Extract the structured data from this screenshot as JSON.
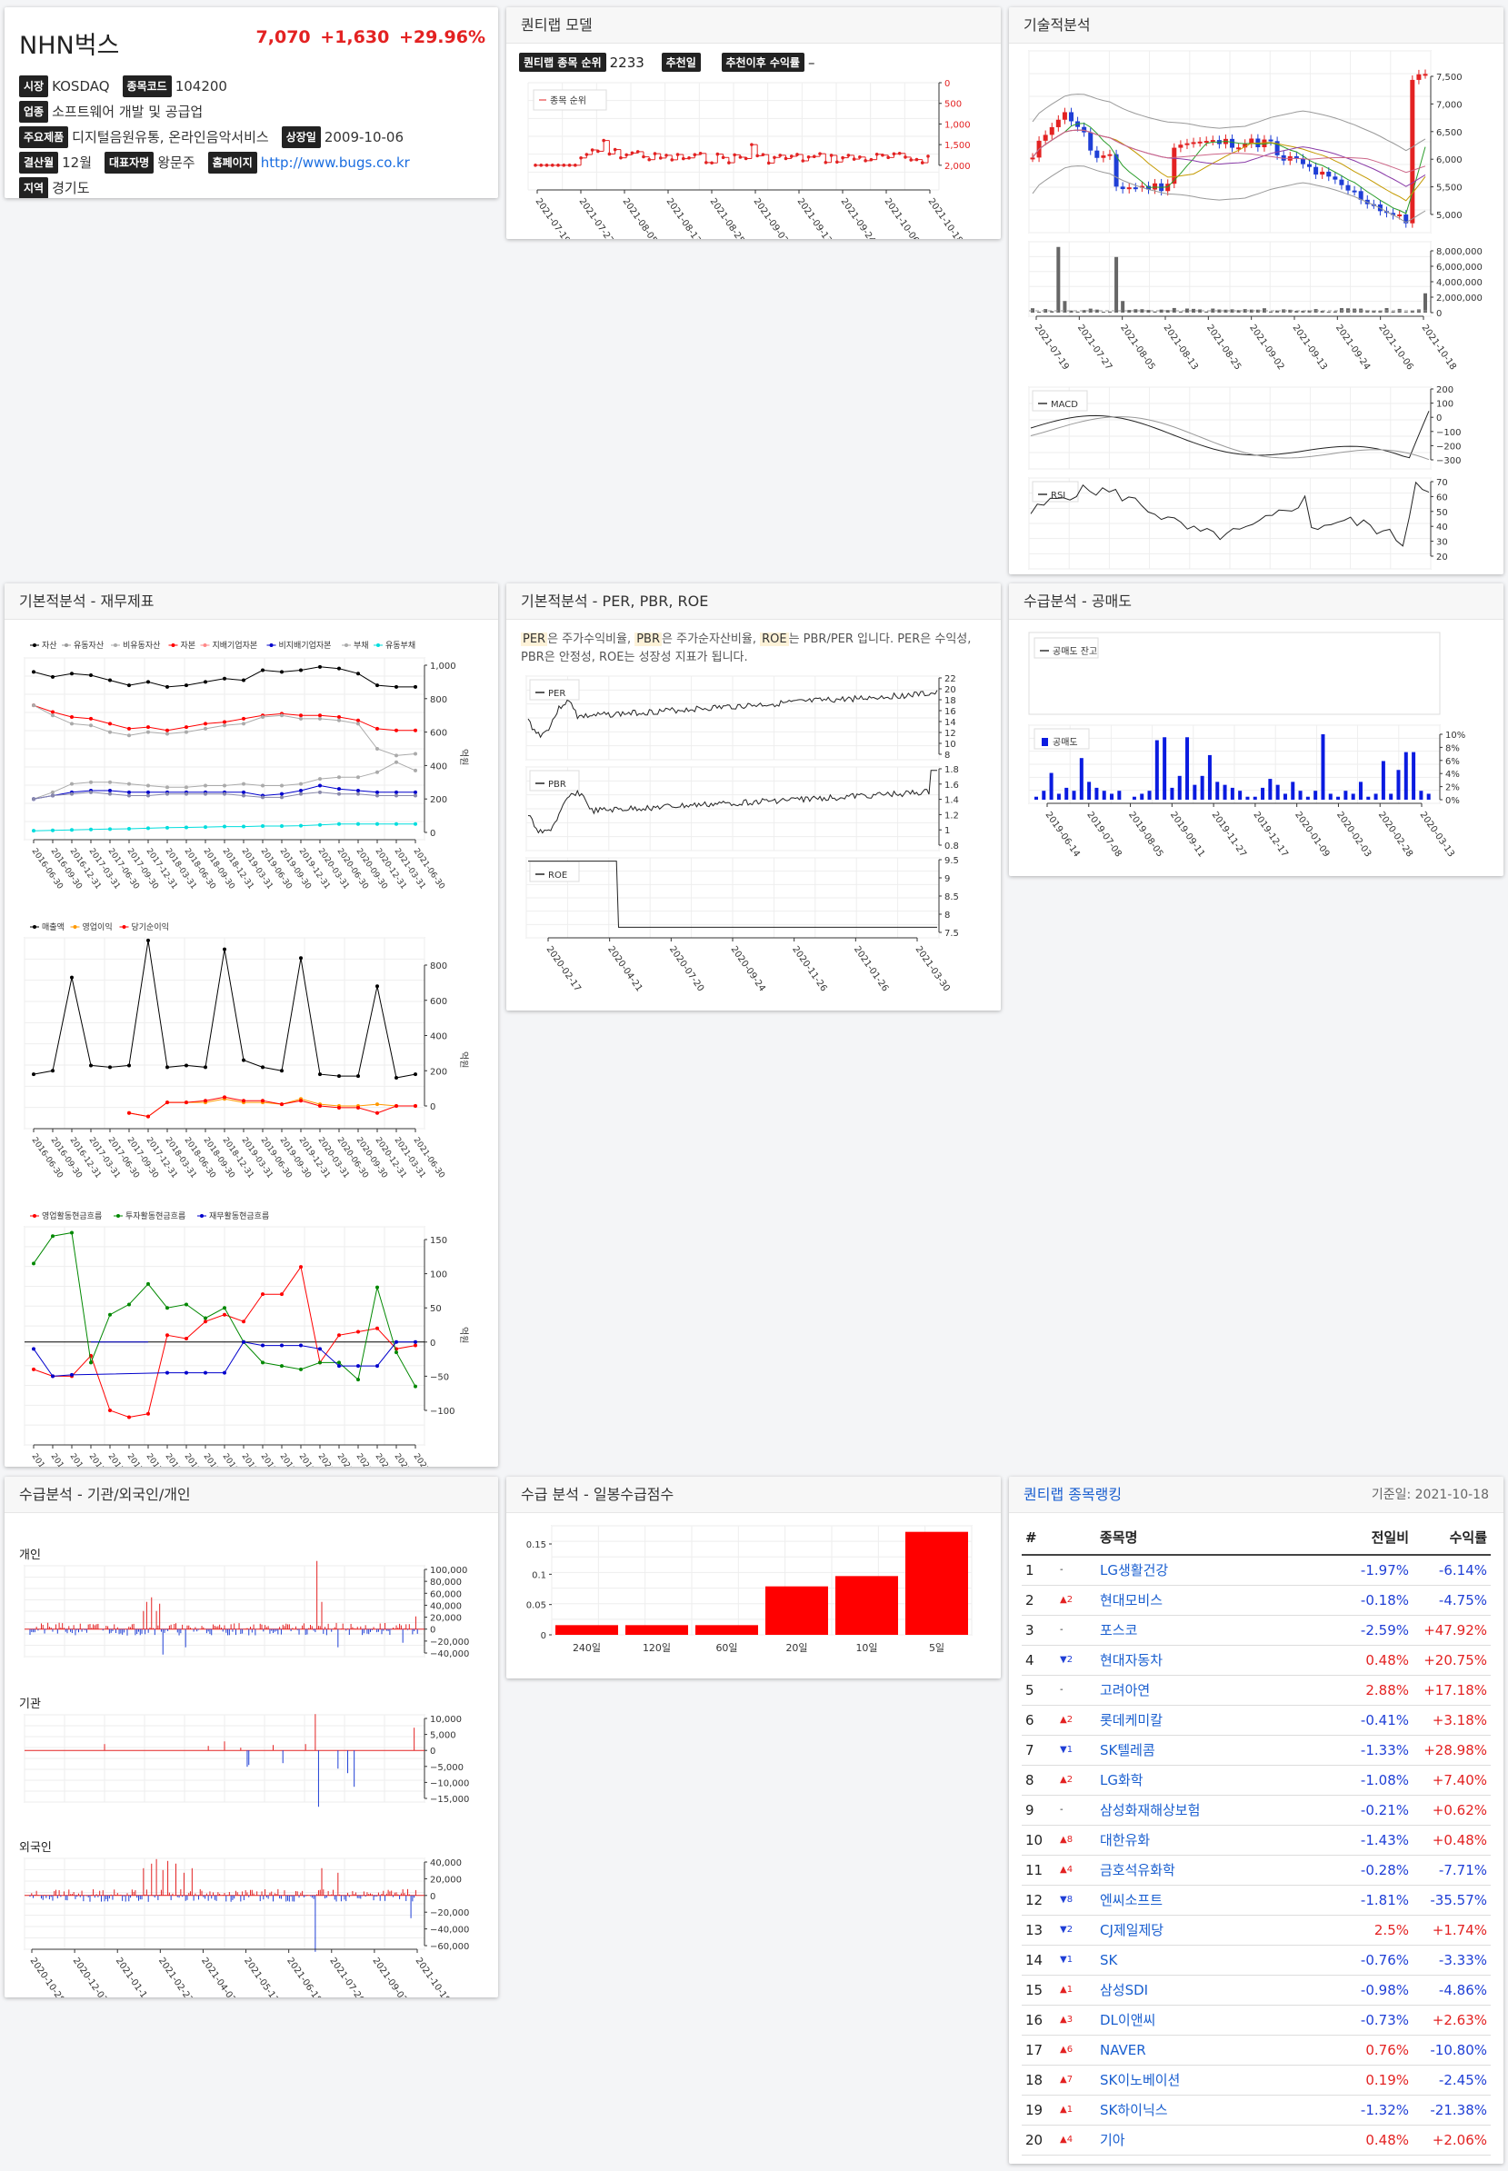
{
  "stock": {
    "name": "NHN벅스",
    "price": "7,070",
    "change": "+1,630",
    "change_pct": "+29.96%",
    "fields": [
      [
        {
          "label": "시장",
          "value": "KOSDAQ"
        },
        {
          "label": "종목코드",
          "value": "104200"
        }
      ],
      [
        {
          "label": "업종",
          "value": "소프트웨어 개발 및 공급업"
        }
      ],
      [
        {
          "label": "주요제품",
          "value": "디지털음원유통, 온라인음악서비스"
        },
        {
          "label": "상장일",
          "value": "2009-10-06"
        }
      ],
      [
        {
          "label": "결산월",
          "value": "12월"
        },
        {
          "label": "대표자명",
          "value": "왕문주"
        },
        {
          "label": "홈페이지",
          "value": "http://www.bugs.co.kr",
          "link": true
        }
      ],
      [
        {
          "label": "지역",
          "value": "경기도"
        }
      ]
    ]
  },
  "model": {
    "title": "퀀티랩 모델",
    "rank_label": "퀀티랩 종목 순위",
    "rank_value": "2233",
    "rec_label": "추천일",
    "rec_value": "",
    "ret_label": "추천이후 수익률",
    "ret_value": "–",
    "legend": "종목 순위",
    "yticks": [
      "0",
      "500",
      "1,000",
      "1,500",
      "2,000"
    ],
    "xticks": [
      "2021-07-19",
      "2021-07-27",
      "2021-08-05",
      "2021-08-13",
      "2021-08-25",
      "2021-09-02",
      "2021-09-13",
      "2021-09-24",
      "2021-10-06",
      "2021-10-18"
    ]
  },
  "tech": {
    "title": "기술적분석",
    "price_ticks": [
      "7,500",
      "7,000",
      "6,500",
      "6,000",
      "5,500",
      "5,000"
    ],
    "vol_ticks": [
      "8,000,000",
      "6,000,000",
      "4,000,000",
      "2,000,000",
      "0"
    ],
    "xticks": [
      "2021-07-19",
      "2021-07-27",
      "2021-08-05",
      "2021-08-13",
      "2021-08-25",
      "2021-09-02",
      "2021-09-13",
      "2021-09-24",
      "2021-10-06",
      "2021-10-18"
    ],
    "macd_label": "MACD",
    "macd_ticks": [
      "200",
      "100",
      "0",
      "−100",
      "−200",
      "−300"
    ],
    "rsi_label": "RSI",
    "rsi_ticks": [
      "70",
      "60",
      "50",
      "40",
      "30",
      "20"
    ]
  },
  "fin": {
    "title": "기본적분석 - 재무제표",
    "legend1": [
      "자산",
      "유동자산",
      "비유동자산",
      "자본",
      "지배기업자본",
      "비지배기업자본",
      "부채",
      "유동부채"
    ],
    "legend1_colors": [
      "#000",
      "#999",
      "#aaa",
      "#f00",
      "#f88",
      "#00c",
      "#aaa",
      "#0dd"
    ],
    "legend2": [
      "매출액",
      "영업이익",
      "당기순이익"
    ],
    "legend2_colors": [
      "#000",
      "#f90",
      "#f00"
    ],
    "legend3": [
      "영업활동현금흐름",
      "투자활동현금흐름",
      "재무활동현금흐름"
    ],
    "legend3_colors": [
      "#f00",
      "#080",
      "#00c"
    ],
    "unit": "억원",
    "ticks1": [
      "1,000",
      "800",
      "600",
      "400",
      "200",
      "0"
    ],
    "ticks2": [
      "800",
      "600",
      "400",
      "200",
      "0"
    ],
    "ticks3": [
      "150",
      "100",
      "50",
      "0",
      "−50",
      "−100"
    ],
    "dates": [
      "2016-06-30",
      "2016-09-30",
      "2016-12-31",
      "2017-03-31",
      "2017-06-30",
      "2017-09-30",
      "2017-12-31",
      "2018-03-31",
      "2018-06-30",
      "2018-09-30",
      "2018-12-31",
      "2019-03-31",
      "2019-06-30",
      "2019-09-30",
      "2019-12-31",
      "2020-03-31",
      "2020-06-30",
      "2020-09-30",
      "2020-12-31",
      "2021-03-31",
      "2021-06-30"
    ]
  },
  "ratio": {
    "title": "기본적분석 - PER, PBR, ROE",
    "desc": [
      {
        "hl": "PER"
      },
      {
        "t": "은 주가수익비율, "
      },
      {
        "hl": "PBR"
      },
      {
        "t": "은 주가순자산비율, "
      },
      {
        "hl": "ROE"
      },
      {
        "t": "는 PBR/PER 입니다. PER은 수익성, PBR은 안정성, ROE는 성장성 지표가 됩니다."
      }
    ],
    "per_label": "PER",
    "per_ticks": [
      "22",
      "20",
      "18",
      "16",
      "14",
      "12",
      "10",
      "8"
    ],
    "pbr_label": "PBR",
    "pbr_ticks": [
      "1.8",
      "1.6",
      "1.4",
      "1.2",
      "1",
      "0.8"
    ],
    "roe_label": "ROE",
    "roe_ticks": [
      "9.5",
      "9",
      "8.5",
      "8",
      "7.5"
    ],
    "xticks": [
      "2020-02-17",
      "2020-04-21",
      "2020-07-20",
      "2020-09-24",
      "2020-11-26",
      "2021-01-26",
      "2021-03-30"
    ]
  },
  "short": {
    "title": "수급분석 - 공매도",
    "legend1": "공매도 잔고",
    "legend2": "공매도",
    "ticks": [
      "10%",
      "8%",
      "6%",
      "4%",
      "2%",
      "0%"
    ],
    "xticks": [
      "2019-06-14",
      "2019-07-08",
      "2019-08-05",
      "2019-09-11",
      "2019-11-27",
      "2019-12-17",
      "2020-01-09",
      "2020-02-03",
      "2020-02-28",
      "2020-03-13"
    ],
    "values": [
      1,
      3,
      9,
      2,
      4,
      3,
      14,
      6,
      4,
      3,
      2,
      3,
      0,
      1,
      2,
      3,
      20,
      21,
      4,
      8,
      21,
      5,
      8,
      15,
      6,
      5,
      4,
      3,
      1,
      1,
      4,
      7,
      5,
      2,
      6,
      3,
      1,
      3,
      22,
      2,
      1,
      3,
      2,
      6,
      1,
      2,
      13,
      2,
      10,
      16,
      16,
      3,
      2
    ]
  },
  "flow": {
    "title": "수급분석 - 기관/외국인/개인",
    "ind": "개인",
    "inst": "기관",
    "frgn": "외국인",
    "ind_ticks": [
      "100,000",
      "80,000",
      "60,000",
      "40,000",
      "20,000",
      "0",
      "−20,000",
      "−40,000"
    ],
    "inst_ticks": [
      "10,000",
      "5,000",
      "0",
      "−5,000",
      "−10,000",
      "−15,000"
    ],
    "frgn_ticks": [
      "40,000",
      "20,000",
      "0",
      "−20,000",
      "−40,000",
      "−60,000"
    ],
    "xticks": [
      "2020-10-28",
      "2020-12-03",
      "2021-01-14",
      "2021-02-23",
      "2021-04-02",
      "2021-05-11",
      "2021-06-18",
      "2021-07-26",
      "2021-09-02",
      "2021-10-18"
    ]
  },
  "score": {
    "title": "수급 분석 - 일봉수급점수",
    "categories": [
      "240일",
      "120일",
      "60일",
      "20일",
      "10일",
      "5일"
    ],
    "values": [
      0.016,
      0.016,
      0.016,
      0.08,
      0.097,
      0.17
    ],
    "yticks": [
      "0.15",
      "0.1",
      "0.05",
      "0"
    ],
    "ylim": [
      0,
      0.18
    ]
  },
  "rank": {
    "title": "퀀티랩 종목랭킹",
    "base_date": "기준일: 2021-10-18",
    "headers": [
      "#",
      "",
      "종목명",
      "전일비",
      "수익률"
    ],
    "rows": [
      {
        "n": "1",
        "mv": "-",
        "dir": "",
        "name": "LG생활건강",
        "chg": "-1.97%",
        "ret": "-6.14%"
      },
      {
        "n": "2",
        "mv": "▲2",
        "dir": "up",
        "name": "현대모비스",
        "chg": "-0.18%",
        "ret": "-4.75%"
      },
      {
        "n": "3",
        "mv": "-",
        "dir": "",
        "name": "포스코",
        "chg": "-2.59%",
        "ret": "+47.92%"
      },
      {
        "n": "4",
        "mv": "▼2",
        "dir": "dn",
        "name": "현대자동차",
        "chg": "0.48%",
        "ret": "+20.75%"
      },
      {
        "n": "5",
        "mv": "-",
        "dir": "",
        "name": "고려아연",
        "chg": "2.88%",
        "ret": "+17.18%"
      },
      {
        "n": "6",
        "mv": "▲2",
        "dir": "up",
        "name": "롯데케미칼",
        "chg": "-0.41%",
        "ret": "+3.18%"
      },
      {
        "n": "7",
        "mv": "▼1",
        "dir": "dn",
        "name": "SK텔레콤",
        "chg": "-1.33%",
        "ret": "+28.98%"
      },
      {
        "n": "8",
        "mv": "▲2",
        "dir": "up",
        "name": "LG화학",
        "chg": "-1.08%",
        "ret": "+7.40%"
      },
      {
        "n": "9",
        "mv": "-",
        "dir": "",
        "name": "삼성화재해상보험",
        "chg": "-0.21%",
        "ret": "+0.62%"
      },
      {
        "n": "10",
        "mv": "▲8",
        "dir": "up",
        "name": "대한유화",
        "chg": "-1.43%",
        "ret": "+0.48%"
      },
      {
        "n": "11",
        "mv": "▲4",
        "dir": "up",
        "name": "금호석유화학",
        "chg": "-0.28%",
        "ret": "-7.71%"
      },
      {
        "n": "12",
        "mv": "▼8",
        "dir": "dn",
        "name": "엔씨소프트",
        "chg": "-1.81%",
        "ret": "-35.57%"
      },
      {
        "n": "13",
        "mv": "▼2",
        "dir": "dn",
        "name": "CJ제일제당",
        "chg": "2.5%",
        "ret": "+1.74%"
      },
      {
        "n": "14",
        "mv": "▼1",
        "dir": "dn",
        "name": "SK",
        "chg": "-0.76%",
        "ret": "-3.33%"
      },
      {
        "n": "15",
        "mv": "▲1",
        "dir": "up",
        "name": "삼성SDI",
        "chg": "-0.98%",
        "ret": "-4.86%"
      },
      {
        "n": "16",
        "mv": "▲3",
        "dir": "up",
        "name": "DL이앤씨",
        "chg": "-0.73%",
        "ret": "+2.63%"
      },
      {
        "n": "17",
        "mv": "▲6",
        "dir": "up",
        "name": "NAVER",
        "chg": "0.76%",
        "ret": "-10.80%"
      },
      {
        "n": "18",
        "mv": "▲7",
        "dir": "up",
        "name": "SK이노베이션",
        "chg": "0.19%",
        "ret": "-2.45%"
      },
      {
        "n": "19",
        "mv": "▲1",
        "dir": "up",
        "name": "SK하이닉스",
        "chg": "-1.32%",
        "ret": "-21.38%"
      },
      {
        "n": "20",
        "mv": "▲4",
        "dir": "up",
        "name": "기아",
        "chg": "0.48%",
        "ret": "+2.06%"
      }
    ]
  }
}
